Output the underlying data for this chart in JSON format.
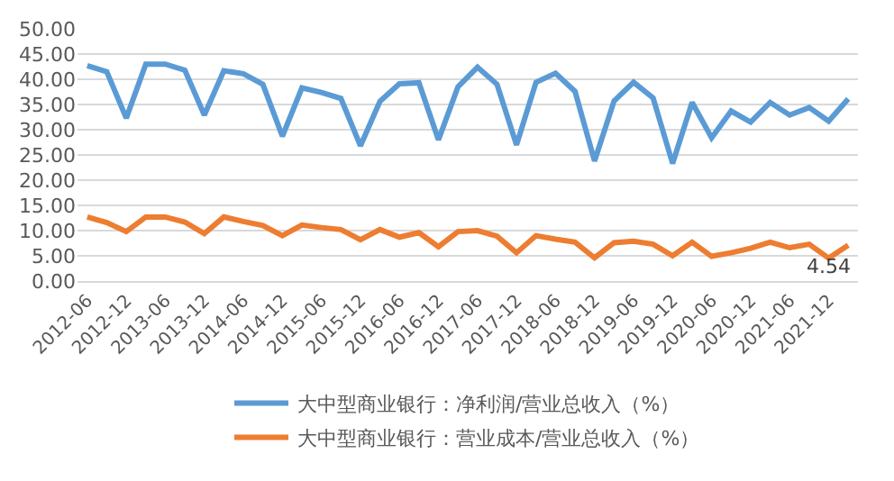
{
  "chart_data": {
    "type": "line",
    "categories": [
      "2012-06",
      null,
      "2012-12",
      null,
      "2013-06",
      null,
      "2013-12",
      null,
      "2014-06",
      null,
      "2014-12",
      null,
      "2015-06",
      null,
      "2015-12",
      null,
      "2016-06",
      null,
      "2016-12",
      null,
      "2017-06",
      null,
      "2017-12",
      null,
      "2018-06",
      null,
      "2018-12",
      null,
      "2019-06",
      null,
      "2019-12",
      null,
      "2020-06",
      null,
      "2020-12",
      null,
      "2021-06",
      null,
      "2021-12",
      null
    ],
    "series": [
      {
        "name": "大中型商业银行：净利润/营业总收入（%）",
        "color": "#5b9bd5",
        "values": [
          42.7,
          41.5,
          32.3,
          43.0,
          43.0,
          41.8,
          32.9,
          41.7,
          41.1,
          39.0,
          28.7,
          38.3,
          37.4,
          36.2,
          26.8,
          35.6,
          39.1,
          39.3,
          28.0,
          38.5,
          42.4,
          39.0,
          27.0,
          39.4,
          41.2,
          37.6,
          23.8,
          35.7,
          39.4,
          36.3,
          23.3,
          35.4,
          28.4,
          33.7,
          31.5,
          35.4,
          32.9,
          34.4,
          31.7,
          36.1
        ]
      },
      {
        "name": "大中型商业银行：营业成本/营业总收入（%）",
        "color": "#ed7d31",
        "values": [
          12.7,
          11.6,
          9.8,
          12.7,
          12.7,
          11.7,
          9.4,
          12.7,
          11.8,
          11.0,
          9.0,
          11.1,
          10.6,
          10.2,
          8.2,
          10.2,
          8.7,
          9.6,
          6.8,
          9.8,
          10.0,
          8.9,
          5.6,
          9.0,
          8.3,
          7.7,
          4.6,
          7.6,
          7.9,
          7.3,
          5.0,
          7.7,
          4.9,
          5.6,
          6.5,
          7.7,
          6.6,
          7.3,
          4.54,
          7.1
        ],
        "value_labels": [
          null,
          null,
          null,
          null,
          null,
          null,
          null,
          null,
          null,
          null,
          null,
          null,
          null,
          null,
          null,
          null,
          null,
          null,
          null,
          null,
          null,
          null,
          null,
          null,
          null,
          null,
          null,
          null,
          null,
          null,
          null,
          null,
          null,
          null,
          null,
          null,
          null,
          null,
          "4.54",
          null
        ]
      }
    ],
    "ylim": [
      0,
      50
    ],
    "yticks": [
      {
        "value": 0,
        "label": "0.00"
      },
      {
        "value": 5,
        "label": "5.00"
      },
      {
        "value": 10,
        "label": "10.00"
      },
      {
        "value": 15,
        "label": "15.00"
      },
      {
        "value": 20,
        "label": "20.00"
      },
      {
        "value": 25,
        "label": "25.00"
      },
      {
        "value": 30,
        "label": "30.00"
      },
      {
        "value": 35,
        "label": "35.00"
      },
      {
        "value": 40,
        "label": "40.00"
      },
      {
        "value": 45,
        "label": "45.00"
      },
      {
        "value": 50,
        "label": "50.00"
      }
    ],
    "grid": "y",
    "legend": "bottom",
    "marker": "none",
    "line_style": "solid"
  }
}
